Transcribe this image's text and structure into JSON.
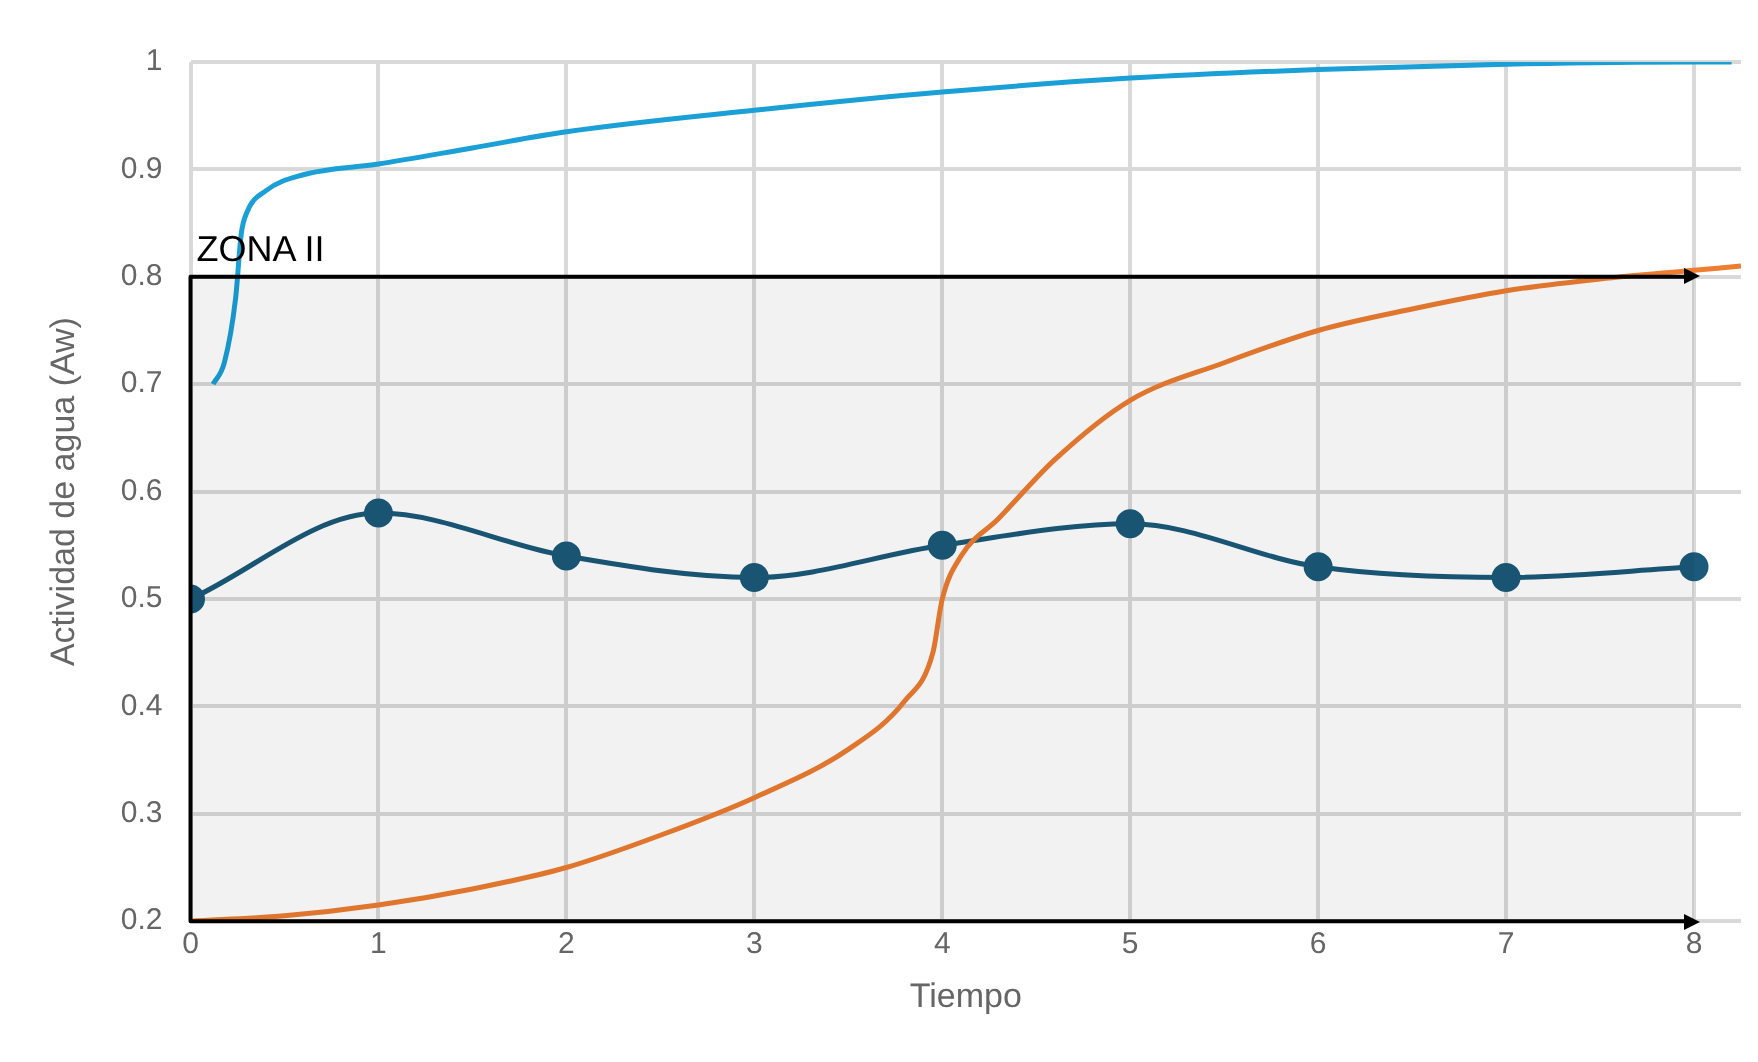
{
  "chart_data": {
    "type": "line",
    "xlabel": "Tiempo",
    "ylabel": "Actividad de agua (Aw)",
    "xlim": [
      0,
      8.25
    ],
    "xticks": [
      0,
      1,
      2,
      3,
      4,
      5,
      6,
      7,
      8
    ],
    "ylim": [
      0.2,
      1
    ],
    "yticks": [
      0.2,
      0.3,
      0.4,
      0.5,
      0.6,
      0.7,
      0.8,
      0.9,
      {
        "value": 1,
        "label": "1"
      }
    ],
    "grid": true,
    "legend": false,
    "series": [
      {
        "color": "#1a9fd6",
        "marker": "none",
        "x": [
          0.12,
          0.18,
          0.24,
          0.27,
          0.3,
          0.4,
          0.6,
          1,
          1.5,
          2,
          3,
          4,
          5,
          6,
          7,
          8,
          8.2
        ],
        "values": [
          0.7,
          0.72,
          0.78,
          0.84,
          0.86,
          0.88,
          0.895,
          0.905,
          0.92,
          0.935,
          0.955,
          0.972,
          0.985,
          0.993,
          0.998,
          1.0,
          1.0
        ]
      },
      {
        "color": "#ed7d31",
        "marker": "none",
        "x": [
          0,
          0.5,
          1,
          1.5,
          2,
          2.5,
          3,
          3.5,
          3.8,
          3.95,
          4.0,
          4.1,
          4.3,
          4.6,
          5,
          5.5,
          6,
          6.5,
          7,
          7.5,
          8,
          8.25
        ],
        "values": [
          0.2,
          0.205,
          0.215,
          0.23,
          0.25,
          0.28,
          0.315,
          0.36,
          0.405,
          0.45,
          0.5,
          0.54,
          0.575,
          0.63,
          0.685,
          0.72,
          0.75,
          0.77,
          0.787,
          0.798,
          0.806,
          0.81
        ]
      },
      {
        "color": "#1b5a7a",
        "marker": "circle",
        "x": [
          0,
          1,
          2,
          3,
          4,
          5,
          6,
          7,
          8
        ],
        "values": [
          0.5,
          0.58,
          0.54,
          0.52,
          0.55,
          0.57,
          0.53,
          0.52,
          0.53
        ]
      }
    ],
    "bands": [
      {
        "axis": "y",
        "from": 0.2,
        "to": 0.8,
        "label": "ZONA II",
        "color": "#000000"
      }
    ]
  }
}
